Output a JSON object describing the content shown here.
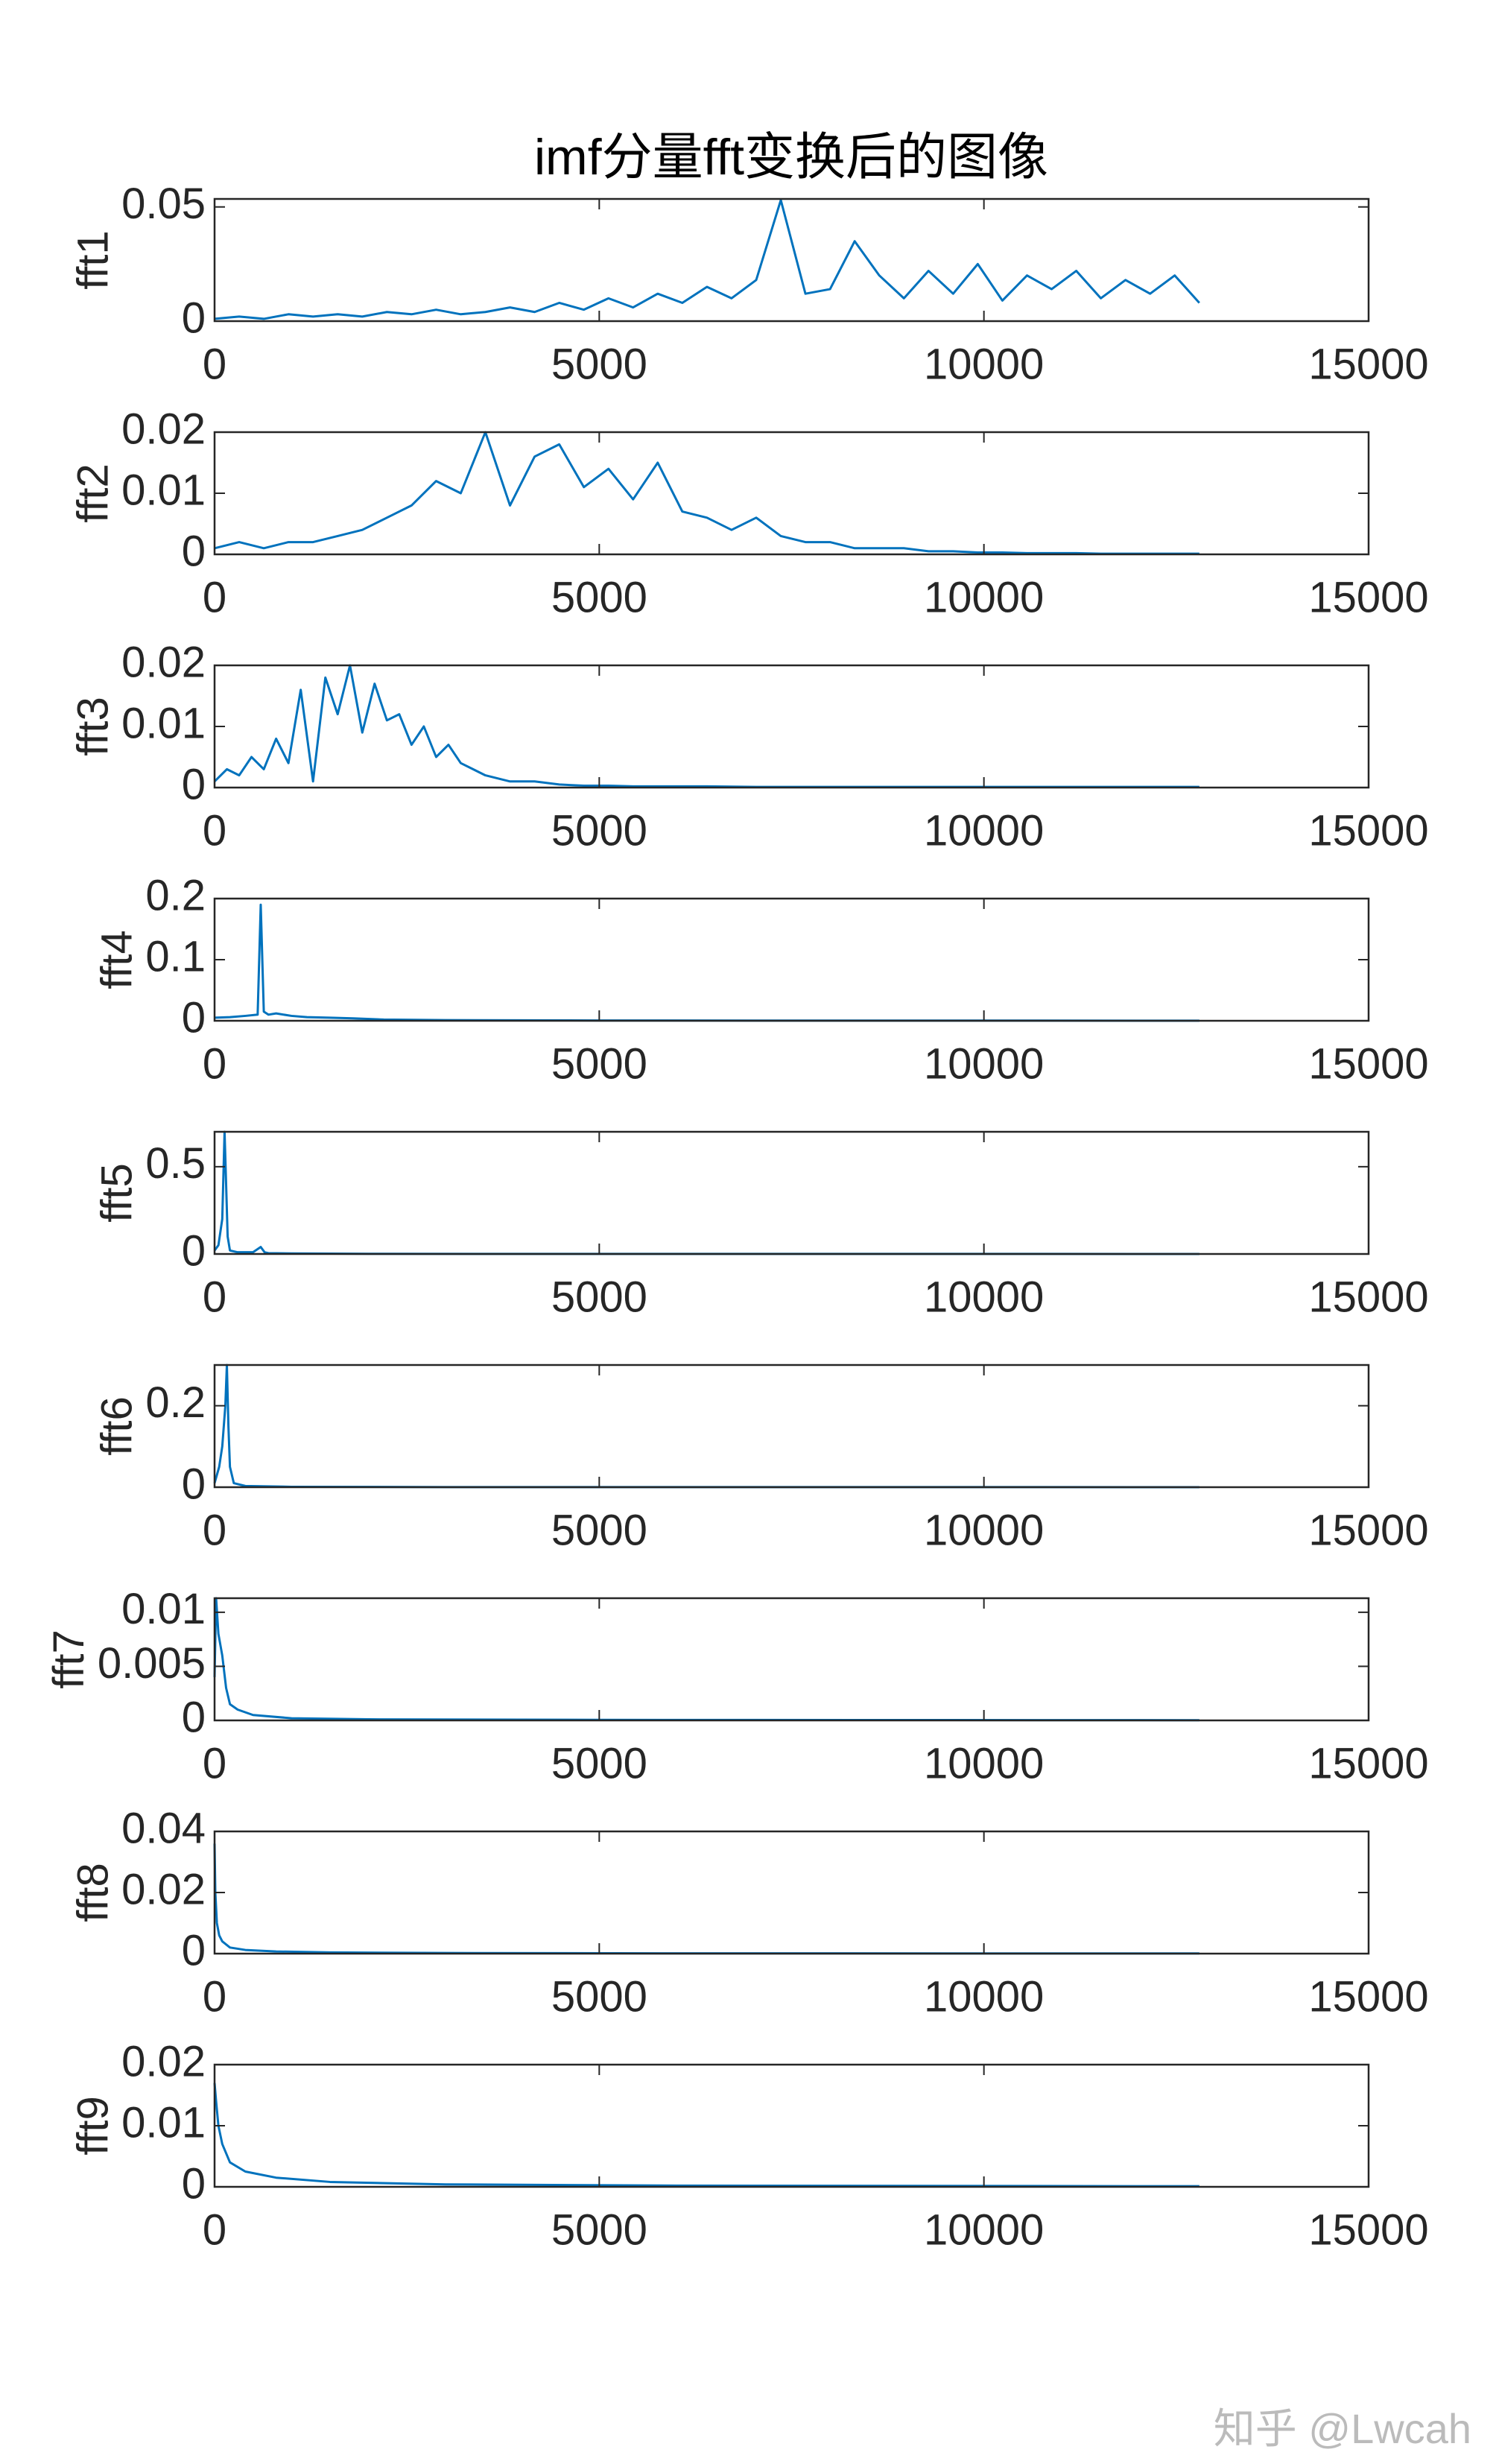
{
  "title": "imf分量fft变换后的图像",
  "watermark": "知乎 @Lwcah",
  "chart_data": [
    {
      "type": "line",
      "ylabel": "fft1",
      "color": "#0072bd",
      "xlim": [
        0,
        15000
      ],
      "xticks": [
        0,
        5000,
        10000,
        15000
      ],
      "ylim": [
        0,
        0.0535
      ],
      "yticks": [
        0,
        0.05
      ],
      "x": [
        0,
        320,
        640,
        960,
        1280,
        1600,
        1920,
        2240,
        2560,
        2880,
        3200,
        3520,
        3840,
        4160,
        4480,
        4800,
        5120,
        5440,
        5760,
        6080,
        6400,
        6720,
        7040,
        7360,
        7680,
        8000,
        8320,
        8640,
        8960,
        9280,
        9600,
        9920,
        10240,
        10560,
        10880,
        11200,
        11520,
        11840,
        12160,
        12480,
        12800
      ],
      "values": [
        0.001,
        0.002,
        0.001,
        0.003,
        0.002,
        0.003,
        0.002,
        0.004,
        0.003,
        0.005,
        0.003,
        0.004,
        0.006,
        0.004,
        0.008,
        0.005,
        0.01,
        0.006,
        0.012,
        0.008,
        0.015,
        0.01,
        0.018,
        0.053,
        0.012,
        0.014,
        0.035,
        0.02,
        0.01,
        0.022,
        0.012,
        0.025,
        0.009,
        0.02,
        0.014,
        0.022,
        0.01,
        0.018,
        0.012,
        0.02,
        0.008
      ]
    },
    {
      "type": "line",
      "ylabel": "fft2",
      "color": "#0072bd",
      "xlim": [
        0,
        15000
      ],
      "xticks": [
        0,
        5000,
        10000,
        15000
      ],
      "ylim": [
        0,
        0.02
      ],
      "yticks": [
        0,
        0.01,
        0.02
      ],
      "x": [
        0,
        320,
        640,
        960,
        1280,
        1600,
        1920,
        2240,
        2560,
        2880,
        3200,
        3520,
        3840,
        4160,
        4480,
        4800,
        5120,
        5440,
        5760,
        6080,
        6400,
        6720,
        7040,
        7360,
        7680,
        8000,
        8320,
        8640,
        8960,
        9280,
        9600,
        9920,
        10240,
        10560,
        10880,
        11200,
        11520,
        11840,
        12160,
        12480,
        12800
      ],
      "values": [
        0.001,
        0.002,
        0.001,
        0.002,
        0.002,
        0.003,
        0.004,
        0.006,
        0.008,
        0.012,
        0.01,
        0.02,
        0.008,
        0.016,
        0.018,
        0.011,
        0.014,
        0.009,
        0.015,
        0.007,
        0.006,
        0.004,
        0.006,
        0.003,
        0.002,
        0.002,
        0.001,
        0.001,
        0.001,
        0.0005,
        0.0005,
        0.0003,
        0.0003,
        0.0002,
        0.0002,
        0.0002,
        0.0001,
        0.0001,
        0.0001,
        0.0001,
        0.0001
      ]
    },
    {
      "type": "line",
      "ylabel": "fft3",
      "color": "#0072bd",
      "xlim": [
        0,
        15000
      ],
      "xticks": [
        0,
        5000,
        10000,
        15000
      ],
      "ylim": [
        0,
        0.02
      ],
      "yticks": [
        0,
        0.01,
        0.02
      ],
      "x": [
        0,
        160,
        320,
        480,
        640,
        800,
        960,
        1120,
        1280,
        1440,
        1600,
        1760,
        1920,
        2080,
        2240,
        2400,
        2560,
        2720,
        2880,
        3040,
        3200,
        3360,
        3520,
        3840,
        4160,
        4480,
        4800,
        5120,
        5440,
        5760,
        6400,
        7040,
        7680,
        8320,
        8960,
        9600,
        10240,
        10880,
        11520,
        12160,
        12800
      ],
      "values": [
        0.001,
        0.003,
        0.002,
        0.005,
        0.003,
        0.008,
        0.004,
        0.016,
        0.001,
        0.018,
        0.012,
        0.02,
        0.009,
        0.017,
        0.011,
        0.012,
        0.007,
        0.01,
        0.005,
        0.007,
        0.004,
        0.003,
        0.002,
        0.001,
        0.001,
        0.0005,
        0.0003,
        0.0003,
        0.0002,
        0.0002,
        0.0002,
        0.0001,
        0.0001,
        0.0001,
        0.0001,
        0.0001,
        0.0001,
        0.0001,
        0.0001,
        0.0001,
        0.0001
      ]
    },
    {
      "type": "line",
      "ylabel": "fft4",
      "color": "#0072bd",
      "xlim": [
        0,
        15000
      ],
      "xticks": [
        0,
        5000,
        10000,
        15000
      ],
      "ylim": [
        0,
        0.2
      ],
      "yticks": [
        0,
        0.1,
        0.2
      ],
      "x": [
        0,
        200,
        400,
        560,
        600,
        640,
        700,
        800,
        1000,
        1200,
        1500,
        1800,
        2200,
        3000,
        5000,
        8000,
        12800
      ],
      "values": [
        0.005,
        0.006,
        0.008,
        0.01,
        0.19,
        0.015,
        0.01,
        0.012,
        0.008,
        0.006,
        0.005,
        0.004,
        0.002,
        0.001,
        0.0005,
        0.0003,
        0.0002
      ]
    },
    {
      "type": "line",
      "ylabel": "fft5",
      "color": "#0072bd",
      "xlim": [
        0,
        15000
      ],
      "xticks": [
        0,
        5000,
        10000,
        15000
      ],
      "ylim": [
        0,
        0.7
      ],
      "yticks": [
        0,
        0.5
      ],
      "x": [
        0,
        50,
        100,
        130,
        150,
        170,
        200,
        300,
        500,
        600,
        650,
        700,
        1000,
        2000,
        5000,
        12800
      ],
      "values": [
        0.02,
        0.05,
        0.2,
        0.7,
        0.4,
        0.1,
        0.02,
        0.01,
        0.01,
        0.04,
        0.01,
        0.005,
        0.003,
        0.001,
        0.0005,
        0.0002
      ]
    },
    {
      "type": "line",
      "ylabel": "fft6",
      "color": "#0072bd",
      "xlim": [
        0,
        15000
      ],
      "xticks": [
        0,
        5000,
        10000,
        15000
      ],
      "ylim": [
        0,
        0.3
      ],
      "yticks": [
        0,
        0.2
      ],
      "x": [
        0,
        60,
        100,
        140,
        160,
        180,
        200,
        250,
        400,
        1000,
        3000,
        12800
      ],
      "values": [
        0.01,
        0.05,
        0.1,
        0.2,
        0.3,
        0.15,
        0.05,
        0.01,
        0.003,
        0.001,
        0.0003,
        0.0001
      ]
    },
    {
      "type": "line",
      "ylabel": "fft7",
      "color": "#0072bd",
      "xlim": [
        0,
        15000
      ],
      "xticks": [
        0,
        5000,
        10000,
        15000
      ],
      "ylim": [
        0,
        0.0113
      ],
      "yticks": [
        0,
        0.005,
        0.01
      ],
      "x": [
        0,
        20,
        50,
        100,
        150,
        200,
        300,
        500,
        1000,
        2000,
        5000,
        12800
      ],
      "values": [
        0.004,
        0.0113,
        0.008,
        0.006,
        0.003,
        0.0015,
        0.001,
        0.0005,
        0.0002,
        0.0001,
        5e-05,
        2e-05
      ]
    },
    {
      "type": "line",
      "ylabel": "fft8",
      "color": "#0072bd",
      "xlim": [
        0,
        15000
      ],
      "xticks": [
        0,
        5000,
        10000,
        15000
      ],
      "ylim": [
        0,
        0.04
      ],
      "yticks": [
        0,
        0.02,
        0.04
      ],
      "x": [
        0,
        10,
        30,
        60,
        100,
        200,
        400,
        800,
        1500,
        3000,
        6000,
        12800
      ],
      "values": [
        0.036,
        0.02,
        0.01,
        0.006,
        0.004,
        0.002,
        0.0012,
        0.0007,
        0.0004,
        0.0002,
        0.0001,
        5e-05
      ]
    },
    {
      "type": "line",
      "ylabel": "fft9",
      "color": "#0072bd",
      "xlim": [
        0,
        15000
      ],
      "xticks": [
        0,
        5000,
        10000,
        15000
      ],
      "ylim": [
        0,
        0.02
      ],
      "yticks": [
        0,
        0.01,
        0.02
      ],
      "x": [
        0,
        20,
        50,
        100,
        200,
        400,
        800,
        1500,
        3000,
        6000,
        12800
      ],
      "values": [
        0.017,
        0.014,
        0.01,
        0.007,
        0.004,
        0.0025,
        0.0015,
        0.0008,
        0.0004,
        0.0002,
        0.0001
      ]
    }
  ]
}
